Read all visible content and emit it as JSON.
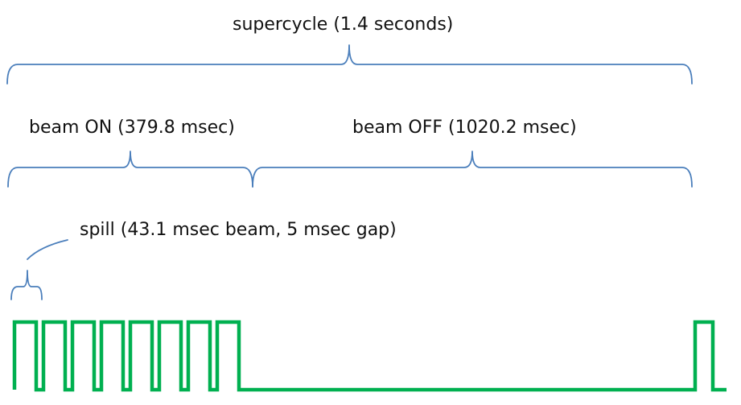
{
  "labels": {
    "supercycle": "supercycle (1.4 seconds)",
    "beam_on": "beam ON (379.8 msec)",
    "beam_off": "beam OFF (1020.2 msec)",
    "spill": "spill (43.1 msec beam, 5 msec gap)"
  },
  "colors": {
    "brace": "#4a7ebb",
    "signal": "#00b050",
    "text": "#111111"
  },
  "timing": {
    "supercycle_msec": 1400,
    "beam_on_msec": 379.8,
    "beam_off_msec": 1020.2,
    "spill_beam_msec": 43.1,
    "spill_gap_msec": 5
  }
}
